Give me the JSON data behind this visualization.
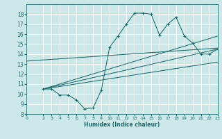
{
  "xlabel": "Humidex (Indice chaleur)",
  "bg_color": "#cce8e8",
  "grid_color": "#ffffff",
  "line_color": "#1a6b6b",
  "xlim": [
    0,
    23
  ],
  "ylim": [
    8,
    19
  ],
  "xticks": [
    0,
    2,
    3,
    4,
    5,
    6,
    7,
    8,
    9,
    10,
    11,
    12,
    13,
    14,
    15,
    16,
    17,
    18,
    19,
    20,
    21,
    22,
    23
  ],
  "yticks": [
    8,
    9,
    10,
    11,
    12,
    13,
    14,
    15,
    16,
    17,
    18
  ],
  "line1_x": [
    2,
    3,
    4,
    5,
    6,
    7,
    8,
    9,
    10,
    11,
    12,
    13,
    14,
    15,
    16,
    17,
    18,
    19,
    20,
    21,
    22,
    23
  ],
  "line1_y": [
    10.5,
    10.5,
    9.9,
    9.9,
    9.4,
    8.5,
    8.6,
    10.4,
    14.7,
    15.8,
    17.0,
    18.1,
    18.1,
    18.0,
    15.9,
    17.0,
    17.7,
    15.8,
    15.1,
    14.0,
    14.0,
    14.5
  ],
  "line2_x": [
    0,
    23
  ],
  "line2_y": [
    13.3,
    14.6
  ],
  "line3_x": [
    2,
    23
  ],
  "line3_y": [
    10.5,
    14.5
  ],
  "line4_x": [
    2,
    23
  ],
  "line4_y": [
    10.5,
    15.8
  ],
  "line5_x": [
    2,
    23
  ],
  "line5_y": [
    10.5,
    13.2
  ]
}
